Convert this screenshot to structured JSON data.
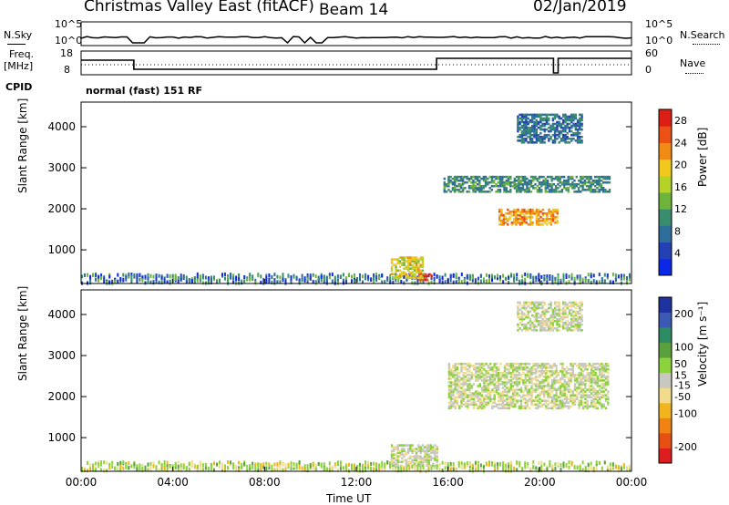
{
  "header": {
    "station": "Christmas Valley East (fitACF)",
    "beam": "Beam 14",
    "date": "02/Jan/2019"
  },
  "small_panels": {
    "nsky_label": "N.Sky",
    "nsky_ticks": [
      "10^5",
      "10^0"
    ],
    "nsearch_label": "N.Search",
    "nsearch_ticks": [
      "10^5",
      "10^0"
    ],
    "freq_label": "Freq.",
    "freq_unit": "[MHz]",
    "freq_ticks": [
      "18",
      "8"
    ],
    "nave_label": "Nave",
    "nave_ticks": [
      "60",
      "0"
    ],
    "cpid_label": "CPID",
    "cpid_text": "normal (fast) 151 RF"
  },
  "colors": {
    "power": [
      "#0a28e6",
      "#2341b4",
      "#2d6e9b",
      "#3a8c6e",
      "#6eb43c",
      "#b4d228",
      "#f0c81e",
      "#f08c14",
      "#eb5014",
      "#dc1e14"
    ],
    "velocity": [
      "#1e32a0",
      "#3c5ab4",
      "#2d8c64",
      "#5aa03c",
      "#8cd23c",
      "#c8c8c0",
      "#f0dc8c",
      "#f0b41e",
      "#f08214",
      "#e65014",
      "#dc1e1e"
    ]
  },
  "chart_data": [
    {
      "type": "heatmap",
      "name": "power",
      "xlabel": "Time UT",
      "ylabel": "Slant Range [km]",
      "x_ticks": [
        "00:00",
        "04:00",
        "08:00",
        "12:00",
        "16:00",
        "20:00",
        "00:00"
      ],
      "xlim_hours": [
        0,
        24
      ],
      "y_ticks": [
        1000,
        2000,
        3000,
        4000
      ],
      "ylim": [
        180,
        4600
      ],
      "colorbar_label": "Power [dB]",
      "colorbar_ticks": [
        4,
        8,
        12,
        16,
        20,
        24,
        28
      ],
      "colorbar_range": [
        0,
        30
      ],
      "regions": [
        {
          "t": [
            14.7,
            15.3
          ],
          "r": [
            250,
            400
          ],
          "level": 28
        },
        {
          "t": [
            13.5,
            14.9
          ],
          "r": [
            300,
            800
          ],
          "level": 18
        },
        {
          "t": [
            18.2,
            20.8
          ],
          "r": [
            1600,
            2000
          ],
          "level": 22
        },
        {
          "t": [
            15.8,
            23.0
          ],
          "r": [
            2400,
            2800
          ],
          "level": 10
        },
        {
          "t": [
            19.0,
            21.8
          ],
          "r": [
            3600,
            4300
          ],
          "level": 8
        }
      ]
    },
    {
      "type": "heatmap",
      "name": "velocity",
      "xlabel": "Time UT",
      "ylabel": "Slant Range [km]",
      "x_ticks": [
        "00:00",
        "04:00",
        "08:00",
        "12:00",
        "16:00",
        "20:00",
        "00:00"
      ],
      "xlim_hours": [
        0,
        24
      ],
      "y_ticks": [
        1000,
        2000,
        3000,
        4000
      ],
      "ylim": [
        180,
        4600
      ],
      "colorbar_label": "Velocity [m s⁻¹]",
      "colorbar_ticks": [
        200,
        100,
        50,
        15,
        -15,
        -50,
        -100,
        -200
      ],
      "colorbar_range": [
        -250,
        250
      ],
      "regions": [
        {
          "t": [
            16.0,
            23.0
          ],
          "r": [
            1700,
            2800
          ],
          "level": 0
        },
        {
          "t": [
            13.5,
            15.5
          ],
          "r": [
            300,
            800
          ],
          "level": 0
        },
        {
          "t": [
            19.0,
            21.8
          ],
          "r": [
            3600,
            4300
          ],
          "level": 0
        }
      ]
    }
  ]
}
